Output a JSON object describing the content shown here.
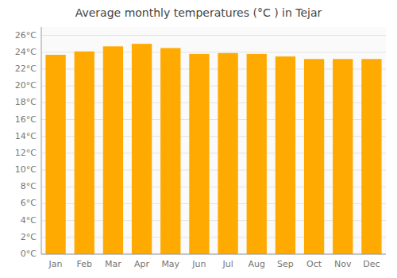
{
  "chart_data": {
    "type": "bar",
    "title": "Average monthly temperatures (°C ) in Tejar",
    "categories": [
      "Jan",
      "Feb",
      "Mar",
      "Apr",
      "May",
      "Jun",
      "Jul",
      "Aug",
      "Sep",
      "Oct",
      "Nov",
      "Dec"
    ],
    "values": [
      23.7,
      24.1,
      24.7,
      25.0,
      24.5,
      23.8,
      23.9,
      23.8,
      23.5,
      23.2,
      23.2,
      23.2
    ],
    "color": "#FFAA00",
    "ylim": [
      0,
      27
    ],
    "yticks": [
      {
        "value": 0,
        "label": "0°C"
      },
      {
        "value": 2,
        "label": "2°C"
      },
      {
        "value": 4,
        "label": "4°C"
      },
      {
        "value": 6,
        "label": "6°C"
      },
      {
        "value": 8,
        "label": "8°C"
      },
      {
        "value": 10,
        "label": "10°C"
      },
      {
        "value": 12,
        "label": "12°C"
      },
      {
        "value": 14,
        "label": "14°C"
      },
      {
        "value": 16,
        "label": "16°C"
      },
      {
        "value": 18,
        "label": "18°C"
      },
      {
        "value": 20,
        "label": "20°C"
      },
      {
        "value": 22,
        "label": "22°C"
      },
      {
        "value": 24,
        "label": "24°C"
      },
      {
        "value": 26,
        "label": "26°C"
      }
    ],
    "grid": true
  }
}
